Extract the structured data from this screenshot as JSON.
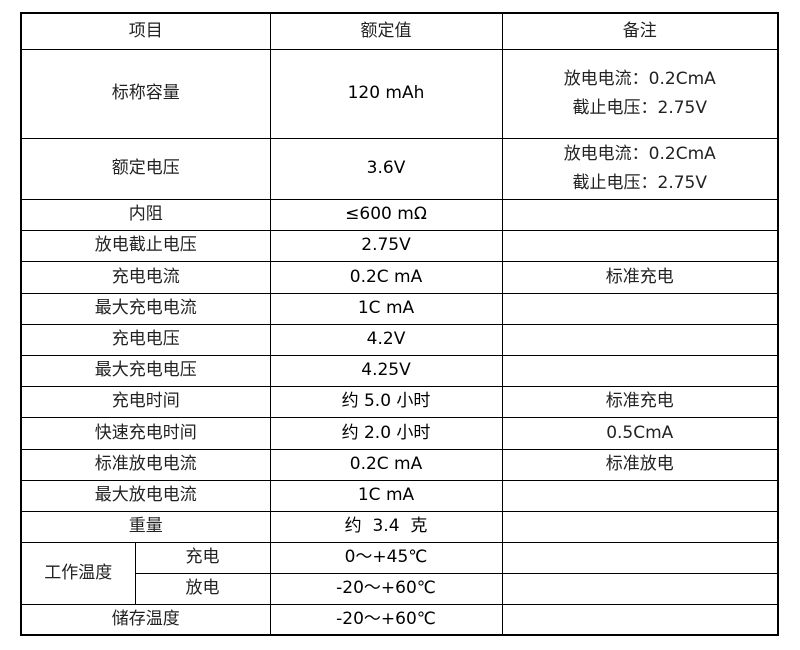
{
  "header": {
    "item": "项目",
    "rated": "额定值",
    "remark": "备注"
  },
  "rows": [
    {
      "item": "标称容量",
      "value": "120 mAh",
      "remark_lines": [
        "放电电流：0.2CmA",
        "截止电压：2.75V"
      ]
    },
    {
      "item": "额定电压",
      "value": "3.6V",
      "remark_lines": [
        "放电电流：0.2CmA",
        "截止电压：2.75V"
      ]
    },
    {
      "item": "内阻",
      "value": "≤600 mΩ",
      "remark": ""
    },
    {
      "item": "放电截止电压",
      "value": "2.75V",
      "remark": ""
    },
    {
      "item": "充电电流",
      "value": "0.2C mA",
      "remark": "标准充电"
    },
    {
      "item": "最大充电电流",
      "value": "1C mA",
      "remark": ""
    },
    {
      "item": "充电电压",
      "value": "4.2V",
      "remark": ""
    },
    {
      "item": "最大充电电压",
      "value": "4.25V",
      "remark": ""
    },
    {
      "item": "充电时间",
      "value": "约 5.0 小时",
      "remark": "标准充电"
    },
    {
      "item": "快速充电时间",
      "value": "约 2.0 小时",
      "remark": "0.5CmA"
    },
    {
      "item": "标准放电电流",
      "value": "0.2C mA",
      "remark": "标准放电"
    },
    {
      "item": "最大放电电流",
      "value": "1C mA",
      "remark": ""
    },
    {
      "item": "重量",
      "value": "约  3.4  克",
      "remark": ""
    }
  ],
  "operating_temp": {
    "item": "工作温度",
    "charge": {
      "label": "充电",
      "value": "0～+45℃",
      "remark": ""
    },
    "discharge": {
      "label": "放电",
      "value": "-20～+60℃",
      "remark": ""
    }
  },
  "storage_temp": {
    "item": "储存温度",
    "value": "-20～+60℃",
    "remark": ""
  }
}
